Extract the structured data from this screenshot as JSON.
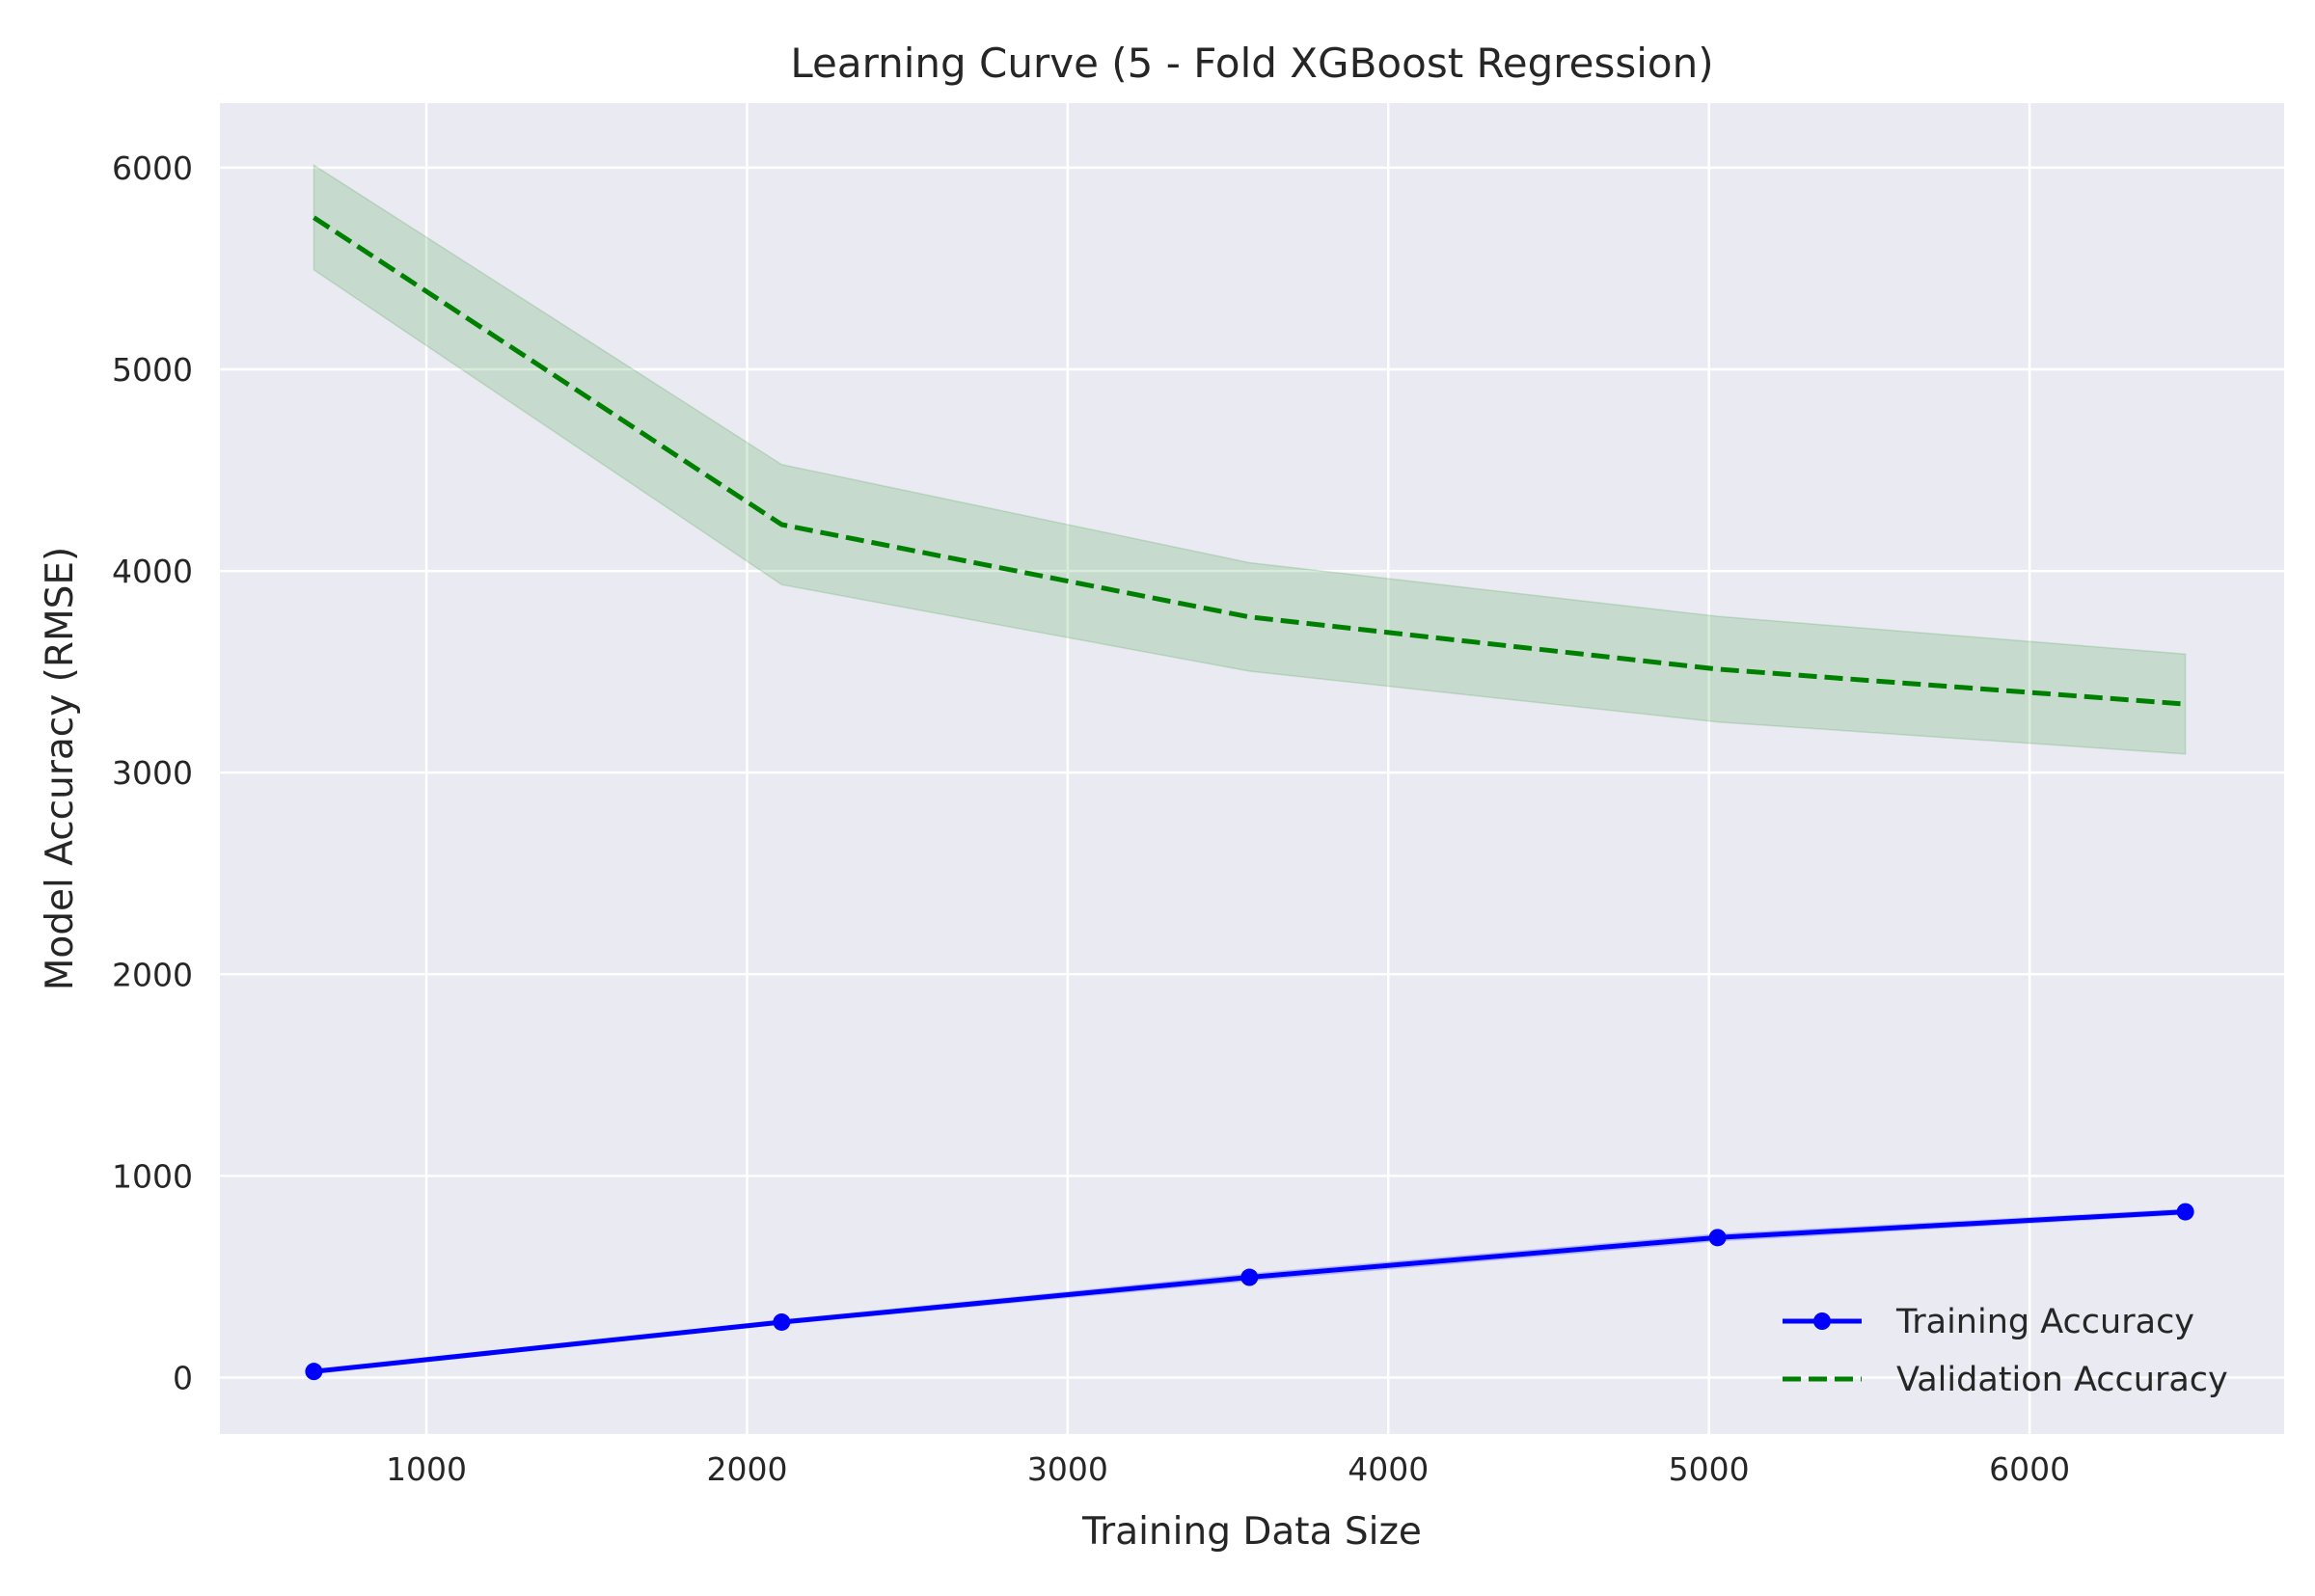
{
  "chart_data": {
    "type": "line",
    "title": "Learning Curve (5 - Fold XGBoost Regression)",
    "xlabel": "Training Data Size",
    "ylabel": "Model Accuracy (RMSE)",
    "xlim": [
      356,
      6794
    ],
    "ylim": [
      -280,
      6320
    ],
    "xticks": [
      1000,
      2000,
      3000,
      4000,
      5000,
      6000
    ],
    "yticks": [
      0,
      1000,
      2000,
      3000,
      4000,
      5000,
      6000
    ],
    "grid": true,
    "legend_position": "lower-right",
    "series": [
      {
        "name": "Training Accuracy",
        "color": "#0000ff",
        "style": "solid",
        "marker": "circle",
        "x": [
          649,
          2108,
          3567,
          5027,
          6486
        ],
        "y": [
          30,
          275,
          497,
          694,
          822
        ],
        "band_lower": [
          20,
          265,
          480,
          677,
          810
        ],
        "band_upper": [
          40,
          285,
          514,
          711,
          834
        ]
      },
      {
        "name": "Validation Accuracy",
        "color": "#008000",
        "style": "dashed",
        "marker": "none",
        "x": [
          649,
          2108,
          3567,
          5027,
          6486
        ],
        "y": [
          5753,
          4230,
          3772,
          3513,
          3340
        ],
        "band_lower": [
          5493,
          3932,
          3503,
          3251,
          3092
        ],
        "band_upper": [
          6013,
          4528,
          4041,
          3775,
          3588
        ]
      }
    ]
  }
}
